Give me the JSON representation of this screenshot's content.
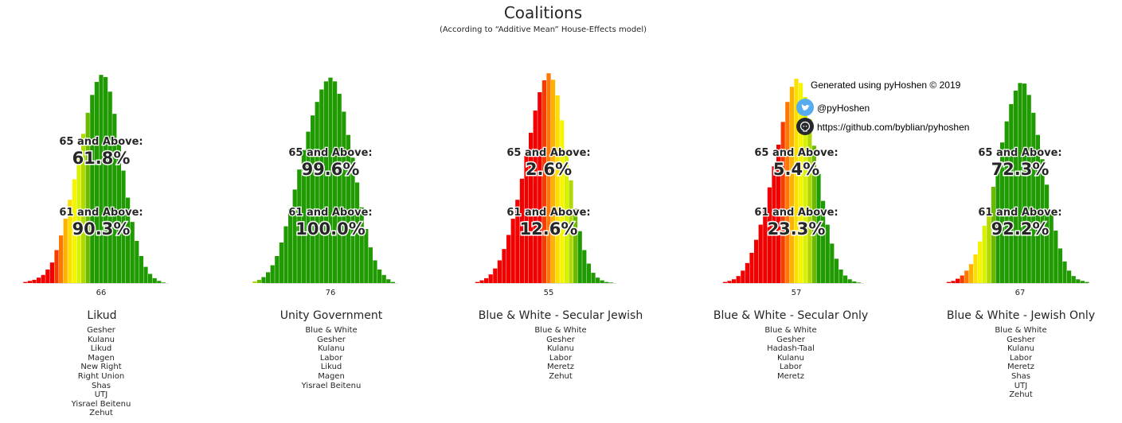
{
  "title": "Coalitions",
  "subtitle": "(According to “Additive Mean” House-Effects model)",
  "credits": {
    "generated": "Generated using pyHoshen © 2019",
    "twitter": "@pyHoshen",
    "github": "https://github.com/byblian/pyhoshen",
    "twitter_color": "#55acee",
    "github_color": "#24292e"
  },
  "threshold_labels": {
    "high": "65 and Above:",
    "low": "61 and Above:"
  },
  "colors": {
    "bar_stops": [
      "#f20000",
      "#ff6a00",
      "#ffd400",
      "#f2ff00",
      "#a8d400",
      "#1f9a00"
    ]
  },
  "chart_data": [
    {
      "type": "bar",
      "name": "Likud",
      "mode_label": "66",
      "seats_from": 48,
      "values": [
        0.2,
        0.4,
        0.6,
        1.0,
        1.5,
        2.5,
        3.8,
        6.1,
        8.8,
        11.9,
        15.4,
        19.2,
        23.4,
        27.6,
        31.5,
        34.8,
        37.2,
        38.5,
        38.1,
        35.4,
        31.3,
        26.2,
        20.8,
        15.8,
        11.3,
        7.8,
        5.0,
        3.0,
        1.7,
        0.9,
        0.4,
        0.1
      ],
      "threshold_65": "61.8%",
      "threshold_61": "90.3%",
      "parties": [
        "Gesher",
        "Kulanu",
        "Likud",
        "Magen",
        "New Right",
        "Right Union",
        "Shas",
        "UTJ",
        "Yisrael Beitenu",
        "Zehut"
      ]
    },
    {
      "type": "bar",
      "name": "Unity Government",
      "mode_label": "76",
      "seats_from": 61,
      "values": [
        0.3,
        0.6,
        1.1,
        2.0,
        3.3,
        5.0,
        7.5,
        10.5,
        13.7,
        17.3,
        21.0,
        24.6,
        28.0,
        31.0,
        33.5,
        35.8,
        37.3,
        38.0,
        37.3,
        35.0,
        31.7,
        27.4,
        23.2,
        18.6,
        14.0,
        10.0,
        6.6,
        4.2,
        2.5,
        1.5,
        0.7,
        0.2
      ],
      "threshold_65": "99.6%",
      "threshold_61": "100.0%",
      "parties": [
        "Blue & White",
        "Gesher",
        "Kulanu",
        "Labor",
        "Likud",
        "Magen",
        "Yisrael Beitenu"
      ]
    },
    {
      "type": "bar",
      "name": "Blue & White - Secular Jewish",
      "mode_label": "55",
      "seats_from": 40,
      "values": [
        0.2,
        0.5,
        0.9,
        1.6,
        2.7,
        4.2,
        6.3,
        8.9,
        11.9,
        15.4,
        19.3,
        23.5,
        27.8,
        31.9,
        35.3,
        37.5,
        38.8,
        37.6,
        34.7,
        30.1,
        24.7,
        19.0,
        13.8,
        9.6,
        6.1,
        3.6,
        1.9,
        1.0,
        0.5,
        0.2,
        0.1
      ],
      "threshold_65": "2.6%",
      "threshold_61": "12.6%",
      "parties": [
        "Blue & White",
        "Gesher",
        "Kulanu",
        "Labor",
        "Meretz",
        "Zehut"
      ]
    },
    {
      "type": "bar",
      "name": "Blue & White - Secular Only",
      "mode_label": "57",
      "seats_from": 42,
      "values": [
        0.2,
        0.4,
        0.7,
        1.3,
        2.3,
        3.7,
        5.6,
        8.0,
        10.8,
        14.0,
        17.7,
        21.6,
        25.6,
        29.8,
        33.5,
        36.3,
        37.8,
        37.0,
        34.4,
        30.3,
        25.4,
        20.2,
        15.2,
        10.8,
        7.3,
        4.5,
        2.5,
        1.4,
        0.7,
        0.3,
        0.1
      ],
      "threshold_65": "5.4%",
      "threshold_61": "23.3%",
      "parties": [
        "Blue & White",
        "Gesher",
        "Hadash-Taal",
        "Kulanu",
        "Labor",
        "Meretz"
      ]
    },
    {
      "type": "bar",
      "name": "Blue & White - Jewish Only",
      "mode_label": "67",
      "seats_from": 52,
      "values": [
        0.2,
        0.4,
        0.8,
        1.4,
        2.3,
        3.5,
        5.3,
        7.7,
        10.6,
        14.0,
        17.8,
        21.9,
        26.0,
        29.9,
        33.1,
        35.6,
        37.0,
        36.9,
        34.8,
        31.5,
        27.4,
        22.9,
        18.2,
        13.7,
        9.7,
        6.4,
        4.0,
        2.3,
        1.3,
        0.7,
        0.4,
        0.2
      ],
      "threshold_65": "72.3%",
      "threshold_61": "92.2%",
      "parties": [
        "Blue & White",
        "Gesher",
        "Kulanu",
        "Labor",
        "Meretz",
        "Shas",
        "UTJ",
        "Zehut"
      ]
    }
  ]
}
